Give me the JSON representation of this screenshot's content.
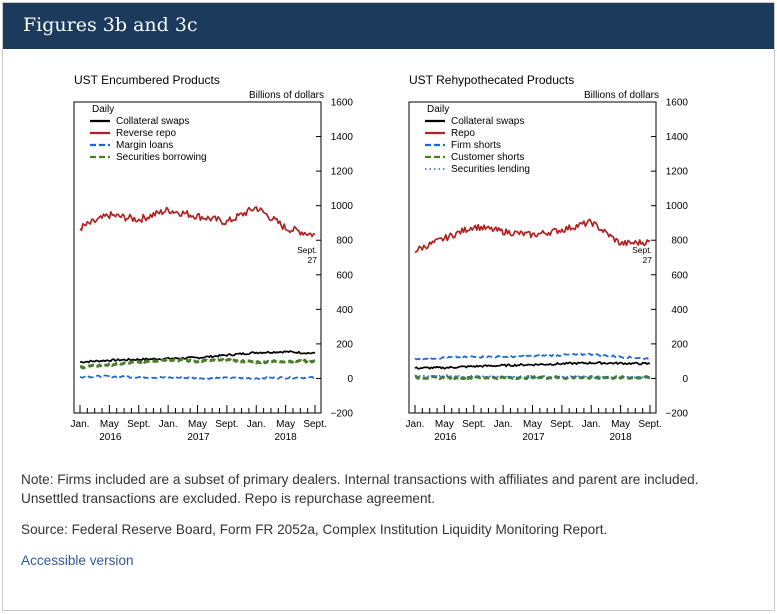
{
  "header": {
    "title": "Figures 3b and 3c"
  },
  "footer": {
    "note": "Note: Firms included are a subset of primary dealers. Internal transactions with affiliates and parent are included. Unsettled transactions are excluded. Repo is repurchase agreement.",
    "source": "Source: Federal Reserve Board, Form FR 2052a, Complex Institution Liquidity Monitoring Report.",
    "accessible_link": "Accessible version"
  },
  "colors": {
    "black": "#000000",
    "red": "#b22222",
    "blue": "#1a66d6",
    "green": "#4a7d2a"
  },
  "chart_data": [
    {
      "type": "line",
      "title": "UST Encumbered Products",
      "ylabel": "Billions of dollars",
      "legend_title": "Daily",
      "ylim": [
        -200,
        1600
      ],
      "yticks": [
        "1600",
        "1400",
        "1200",
        "1000",
        "800",
        "600",
        "400",
        "200",
        "0",
        "−200"
      ],
      "x_month_labels": [
        "Jan.",
        "May",
        "Sept.",
        "Jan.",
        "May",
        "Sept.",
        "Jan.",
        "May",
        "Sept."
      ],
      "x_year_labels": [
        "2016",
        "2017",
        "2018"
      ],
      "x": [
        "Jan. 2016",
        "May 2016",
        "Sept. 2016",
        "Jan. 2017",
        "May 2017",
        "Sept. 2017",
        "Jan. 2018",
        "May 2018",
        "Sept. 2018"
      ],
      "annotation": "Sept. 27",
      "series": [
        {
          "name": "Collateral swaps",
          "style": "solid",
          "color": "#000000",
          "values": [
            95,
            105,
            110,
            115,
            120,
            135,
            150,
            155,
            145
          ]
        },
        {
          "name": "Reverse repo",
          "style": "solid",
          "color": "#b22222",
          "values": [
            870,
            945,
            920,
            975,
            940,
            905,
            990,
            870,
            830
          ]
        },
        {
          "name": "Margin loans",
          "style": "dashed",
          "color": "#1a66d6",
          "values": [
            10,
            12,
            8,
            5,
            3,
            2,
            2,
            4,
            5
          ]
        },
        {
          "name": "Securities borrowing",
          "style": "dashed",
          "color": "#4a7d2a",
          "values": [
            65,
            80,
            95,
            110,
            100,
            105,
            95,
            100,
            100
          ]
        }
      ]
    },
    {
      "type": "line",
      "title": "UST Rehypothecated Products",
      "ylabel": "Billions of dollars",
      "legend_title": "Daily",
      "ylim": [
        -200,
        1600
      ],
      "yticks": [
        "1600",
        "1400",
        "1200",
        "1000",
        "800",
        "600",
        "400",
        "200",
        "0",
        "−200"
      ],
      "x_month_labels": [
        "Jan.",
        "May",
        "Sept.",
        "Jan.",
        "May",
        "Sept.",
        "Jan.",
        "May",
        "Sept."
      ],
      "x_year_labels": [
        "2016",
        "2017",
        "2018"
      ],
      "x": [
        "Jan. 2016",
        "May 2016",
        "Sept. 2016",
        "Jan. 2017",
        "May 2017",
        "Sept. 2017",
        "Jan. 2018",
        "May 2018",
        "Sept. 2018"
      ],
      "annotation": "Sept. 27",
      "series": [
        {
          "name": "Collateral swaps",
          "style": "solid",
          "color": "#000000",
          "values": [
            60,
            62,
            70,
            75,
            80,
            85,
            90,
            88,
            85
          ]
        },
        {
          "name": "Repo",
          "style": "solid",
          "color": "#b22222",
          "values": [
            740,
            810,
            880,
            850,
            830,
            860,
            905,
            780,
            790
          ]
        },
        {
          "name": "Firm shorts",
          "style": "dashed",
          "color": "#1a66d6",
          "values": [
            115,
            120,
            125,
            125,
            130,
            135,
            140,
            125,
            115
          ]
        },
        {
          "name": "Customer shorts",
          "style": "dashed",
          "color": "#4a7d2a",
          "values": [
            5,
            5,
            5,
            5,
            5,
            5,
            5,
            5,
            5
          ]
        },
        {
          "name": "Securities lending",
          "style": "dotted",
          "color": "#1a66d6",
          "values": [
            15,
            15,
            12,
            10,
            10,
            8,
            8,
            8,
            8
          ]
        }
      ]
    }
  ]
}
